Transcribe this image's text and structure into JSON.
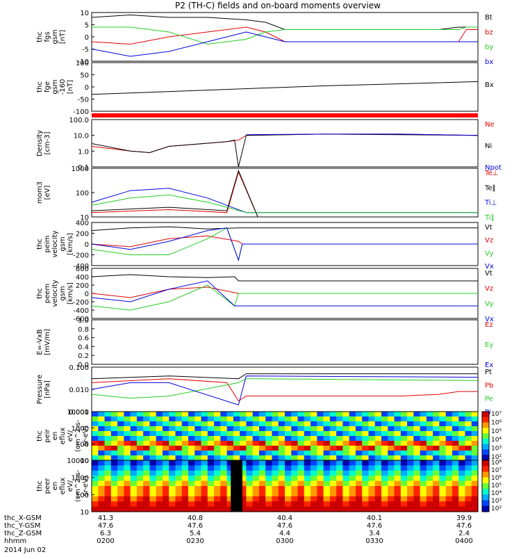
{
  "title": "P2 (TH-C) fields and on-board moments overview",
  "colors": {
    "black": "#000000",
    "red": "#e00000",
    "green": "#22cc22",
    "blue": "#0000dd"
  },
  "chart_data": [
    {
      "type": "line",
      "panel": "fgs",
      "ylabel": [
        "thc",
        "fgs",
        "gsm",
        "[nT]"
      ],
      "yticks": [
        "10",
        "5",
        "0",
        "-5",
        "-10"
      ],
      "ylim": [
        -10,
        10
      ],
      "series": [
        {
          "name": "Bt",
          "color": "black",
          "x": [
            0,
            0.1,
            0.2,
            0.3,
            0.4,
            0.45,
            0.5,
            0.6,
            0.7,
            0.8,
            0.9,
            0.95,
            0.97,
            1.0
          ],
          "y": [
            8,
            9,
            8,
            8,
            7,
            6,
            3,
            3,
            3,
            3,
            3,
            4,
            4,
            4
          ]
        },
        {
          "name": "bz",
          "color": "red",
          "x": [
            0,
            0.1,
            0.2,
            0.3,
            0.4,
            0.45,
            0.5,
            0.6,
            0.7,
            0.8,
            0.9,
            0.95,
            0.97,
            1.0
          ],
          "y": [
            -2,
            -3,
            0,
            2,
            4,
            2,
            -2,
            -2,
            -2,
            -2,
            -2,
            -2,
            3,
            3
          ]
        },
        {
          "name": "by",
          "color": "green",
          "x": [
            0,
            0.1,
            0.2,
            0.3,
            0.4,
            0.45,
            0.5,
            0.6,
            0.7,
            0.8,
            0.9,
            0.95,
            0.97,
            1.0
          ],
          "y": [
            4,
            4,
            2,
            -3,
            -1,
            2,
            3,
            3,
            3,
            3,
            3,
            3,
            4,
            4
          ]
        },
        {
          "name": "bx",
          "color": "blue",
          "x": [
            0,
            0.1,
            0.2,
            0.3,
            0.4,
            0.45,
            0.5,
            0.6,
            0.7,
            0.8,
            0.9,
            0.95,
            0.97,
            1.0
          ],
          "y": [
            -5,
            -8,
            -6,
            -2,
            2,
            0,
            -2,
            -2,
            -2,
            -2,
            -2,
            -2,
            -2,
            -2
          ]
        }
      ]
    },
    {
      "type": "line",
      "panel": "fge",
      "ylabel": [
        "thc",
        "fge",
        "gsm",
        "-160",
        "[nT]"
      ],
      "yticks": [
        "100",
        "50",
        "0",
        "-50",
        "-100"
      ],
      "ylim": [
        -130,
        100
      ],
      "series": [
        {
          "name": "Bx",
          "color": "black",
          "x": [
            0,
            0.3,
            0.6,
            1.0
          ],
          "y": [
            -50,
            -30,
            -10,
            10
          ]
        }
      ]
    },
    {
      "type": "line",
      "panel": "density",
      "scale": "log",
      "ylabel": [
        "Density",
        "[cm-3]"
      ],
      "yticks": [
        "100.0",
        "10.0",
        "1.0",
        "0.1"
      ],
      "ylim": [
        0.1,
        100
      ],
      "series": [
        {
          "name": "Ne",
          "color": "red",
          "x": [
            0,
            0.1,
            0.15,
            0.2,
            0.35,
            0.38,
            0.4,
            0.6,
            0.8,
            1.0
          ],
          "y": [
            2,
            1,
            0.8,
            2,
            4,
            5,
            10,
            12,
            12,
            10
          ]
        },
        {
          "name": "Ni",
          "color": "black",
          "x": [
            0,
            0.1,
            0.15,
            0.2,
            0.35,
            0.37,
            0.38,
            0.4,
            0.6,
            0.8,
            1.0
          ],
          "y": [
            3,
            1,
            0.8,
            2,
            4,
            5,
            0.1,
            10,
            12,
            11,
            10
          ]
        },
        {
          "name": "Npot",
          "color": "blue",
          "x": [
            0.4,
            0.6,
            0.8,
            1.0
          ],
          "y": [
            11,
            12,
            12,
            10
          ]
        }
      ]
    },
    {
      "type": "line",
      "panel": "temperature",
      "scale": "log",
      "ylabel": [
        "mom3",
        "[eV]"
      ],
      "yticks": [
        "1000",
        "100",
        "10"
      ],
      "ylim": [
        10,
        1000
      ],
      "series": [
        {
          "name": "Te⊥",
          "color": "red",
          "x": [
            0,
            0.2,
            0.35,
            0.38,
            0.43,
            1.0
          ],
          "y": [
            15,
            20,
            15,
            700,
            10,
            10
          ]
        },
        {
          "name": "Te∥",
          "color": "black",
          "x": [
            0,
            0.2,
            0.35,
            0.38,
            0.43,
            1.0
          ],
          "y": [
            18,
            25,
            18,
            800,
            10,
            10
          ]
        },
        {
          "name": "Ti⊥",
          "color": "blue",
          "x": [
            0,
            0.1,
            0.2,
            0.3,
            0.35,
            0.4,
            1.0
          ],
          "y": [
            40,
            120,
            150,
            60,
            30,
            15,
            15
          ]
        },
        {
          "name": "Ti∥",
          "color": "green",
          "x": [
            0,
            0.1,
            0.2,
            0.3,
            0.35,
            0.4,
            1.0
          ],
          "y": [
            30,
            60,
            80,
            40,
            25,
            15,
            15
          ]
        }
      ]
    },
    {
      "type": "line",
      "panel": "peim",
      "ylabel": [
        "thc",
        "peim",
        "velocity",
        "gsm",
        "[km/s]"
      ],
      "yticks": [
        "400",
        "200",
        "0",
        "-200",
        "-400"
      ],
      "ylim": [
        -400,
        400
      ],
      "series": [
        {
          "name": "Vt",
          "color": "black",
          "x": [
            0,
            0.1,
            0.2,
            0.3,
            0.38,
            0.39,
            1.0
          ],
          "y": [
            250,
            300,
            320,
            280,
            300,
            300,
            300
          ]
        },
        {
          "name": "Vz",
          "color": "red",
          "x": [
            0,
            0.1,
            0.2,
            0.3,
            0.38,
            0.39,
            1.0
          ],
          "y": [
            0,
            -50,
            100,
            150,
            50,
            0,
            0
          ]
        },
        {
          "name": "Vy",
          "color": "green",
          "x": [
            0,
            0.1,
            0.2,
            0.3,
            0.35,
            0.38,
            0.39,
            1.0
          ],
          "y": [
            -100,
            -200,
            -200,
            100,
            300,
            -300,
            0,
            0
          ]
        },
        {
          "name": "Vx",
          "color": "blue",
          "x": [
            0,
            0.1,
            0.2,
            0.3,
            0.35,
            0.38,
            0.39,
            1.0
          ],
          "y": [
            0,
            -100,
            50,
            250,
            300,
            -300,
            0,
            0
          ]
        }
      ]
    },
    {
      "type": "line",
      "panel": "peem",
      "ylabel": [
        "thc",
        "peem",
        "velocity",
        "gsm",
        "[km/s]"
      ],
      "yticks": [
        "600",
        "400",
        "200",
        "0",
        "-200",
        "-400",
        "-600"
      ],
      "ylim": [
        -600,
        600
      ],
      "series": [
        {
          "name": "Vt",
          "color": "black",
          "x": [
            0,
            0.1,
            0.2,
            0.3,
            0.37,
            0.38,
            1.0
          ],
          "y": [
            400,
            450,
            400,
            380,
            400,
            300,
            300
          ]
        },
        {
          "name": "Vz",
          "color": "red",
          "x": [
            0,
            0.1,
            0.2,
            0.3,
            0.38,
            1.0
          ],
          "y": [
            0,
            -100,
            100,
            150,
            0,
            0
          ]
        },
        {
          "name": "Vy",
          "color": "green",
          "x": [
            0,
            0.1,
            0.2,
            0.3,
            0.37,
            0.38,
            1.0
          ],
          "y": [
            -300,
            -400,
            -200,
            200,
            -300,
            0,
            0
          ]
        },
        {
          "name": "Vx",
          "color": "blue",
          "x": [
            0,
            0.1,
            0.2,
            0.3,
            0.37,
            0.38,
            1.0
          ],
          "y": [
            -100,
            -200,
            100,
            300,
            -300,
            -300,
            -300
          ]
        }
      ]
    },
    {
      "type": "line",
      "panel": "efield",
      "ylabel": [
        "E=-VxB",
        "[mV/m]"
      ],
      "yticks": [
        "1.0",
        "0.8",
        "0.6",
        "0.4",
        "0.2",
        "0.0"
      ],
      "ylim": [
        0,
        1
      ],
      "series": [
        {
          "name": "Ez",
          "color": "red",
          "x": [],
          "y": []
        },
        {
          "name": "Ey",
          "color": "green",
          "x": [],
          "y": []
        },
        {
          "name": "Ex",
          "color": "blue",
          "x": [],
          "y": []
        }
      ]
    },
    {
      "type": "line",
      "panel": "pressure",
      "scale": "log",
      "ylabel": [
        "Pressure",
        "[nPa]"
      ],
      "yticks": [
        "0.100",
        "0.010",
        "0.001"
      ],
      "ylim": [
        0.001,
        0.1
      ],
      "series": [
        {
          "name": "Pt",
          "color": "black",
          "x": [
            0,
            0.2,
            0.38,
            0.4,
            1.0
          ],
          "y": [
            0.03,
            0.04,
            0.03,
            0.05,
            0.05
          ]
        },
        {
          "name": "Pb",
          "color": "red",
          "x": [
            0,
            0.2,
            0.35,
            0.38,
            0.4,
            0.8,
            0.9,
            0.95,
            1.0
          ],
          "y": [
            0.02,
            0.03,
            0.02,
            0.003,
            0.005,
            0.005,
            0.006,
            0.008,
            0.008
          ]
        },
        {
          "name": "Pe",
          "color": "green",
          "x": [
            0,
            0.1,
            0.2,
            0.38,
            0.4,
            1.0
          ],
          "y": [
            0.006,
            0.004,
            0.005,
            0.02,
            0.03,
            0.025
          ]
        },
        {
          "name": "Pi",
          "color": "blue",
          "x": [
            0,
            0.1,
            0.2,
            0.38,
            0.4,
            1.0
          ],
          "y": [
            0.01,
            0.02,
            0.02,
            0.002,
            0.04,
            0.035
          ]
        }
      ]
    },
    {
      "type": "heatmap",
      "panel": "peir",
      "ylabel": [
        "thc",
        "peir",
        "en",
        "eflux",
        "eV/",
        "(cm^2-s-",
        "sr-eV)"
      ],
      "yticks": [
        "10000",
        "1000",
        "100",
        "10"
      ],
      "ylim": [
        10,
        30000
      ],
      "colorbar_ticks": [
        "10⁷",
        "10⁶",
        "10⁵",
        "10⁴",
        "10³",
        "10²"
      ]
    },
    {
      "type": "heatmap",
      "panel": "peer",
      "ylabel": [
        "thc",
        "peer",
        "en",
        "eflux",
        "eV/",
        "(cm^2-s-",
        "sr-eV)"
      ],
      "yticks": [
        "10000",
        "1000",
        "100",
        "10"
      ],
      "ylim": [
        10,
        30000
      ],
      "colorbar_ticks": [
        "10⁸",
        "10⁷",
        "10⁶",
        "10⁵",
        "10⁴",
        "10³",
        "10²"
      ]
    }
  ],
  "xaxis": {
    "rows": [
      {
        "label": "thc_X-GSM",
        "values": [
          "41.3",
          "40.8",
          "40.4",
          "40.1",
          "39.9"
        ]
      },
      {
        "label": "thc_Y-GSM",
        "values": [
          "47.6",
          "47.6",
          "47.6",
          "47.6",
          "47.6"
        ]
      },
      {
        "label": "thc_Z-GSM",
        "values": [
          "6.3",
          "5.4",
          "4.4",
          "3.4",
          "2.4"
        ]
      },
      {
        "label": "hhmm",
        "values": [
          "0200",
          "0230",
          "0300",
          "0330",
          "0400"
        ]
      }
    ],
    "date": "2014 Jun 02"
  }
}
